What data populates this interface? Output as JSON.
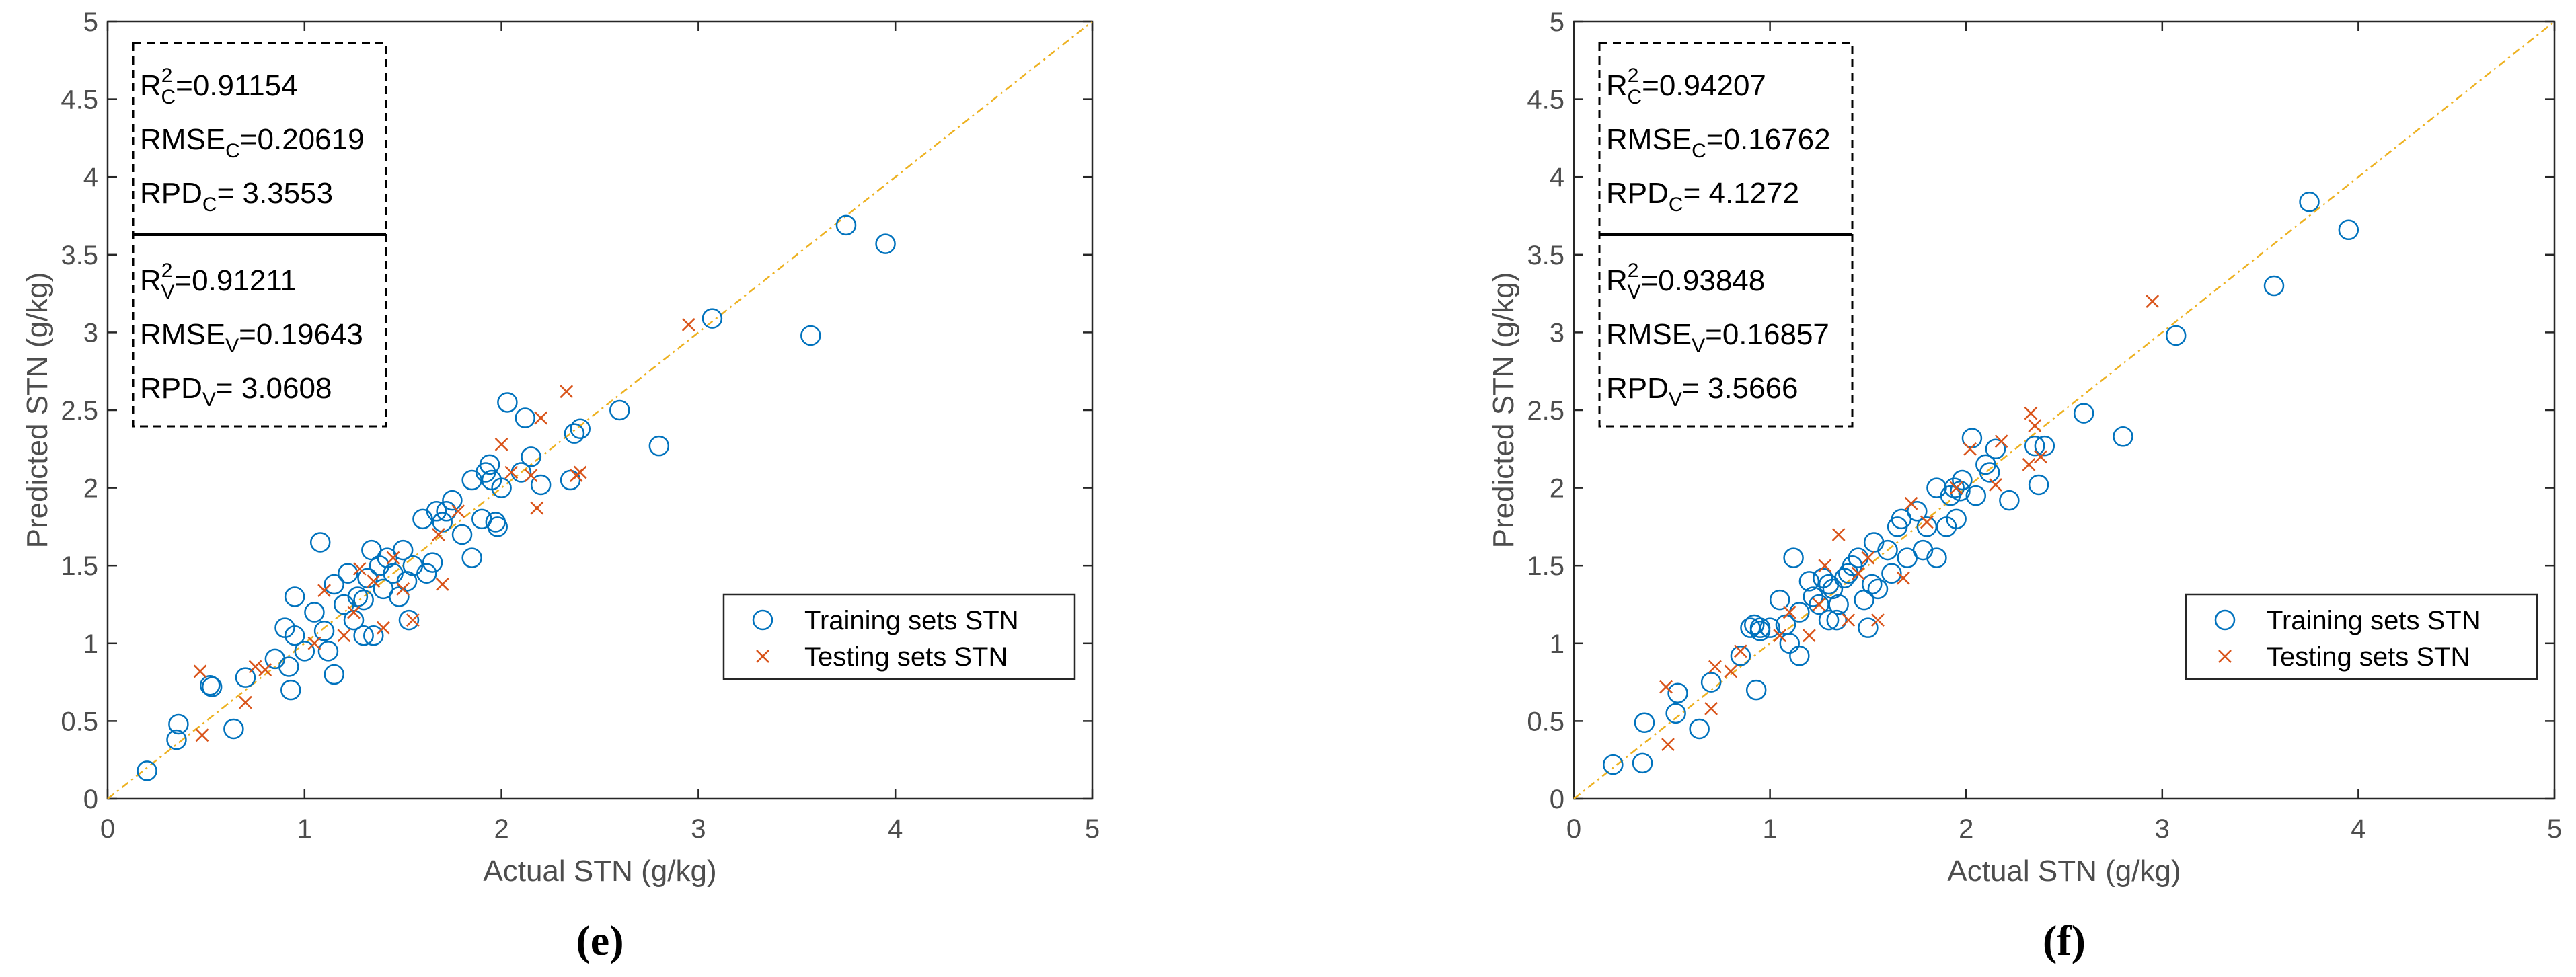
{
  "colors": {
    "train": "#0072BD",
    "test": "#D95319",
    "refline": "#EDB120",
    "axis": "#262626",
    "tick_text": "#4D4D4D",
    "stats_text": "#000000"
  },
  "chart_data": [
    {
      "type": "scatter",
      "panel_label": "(e)",
      "xlabel": "Actual STN (g/kg)",
      "ylabel": "Predicted STN (g/kg)",
      "xlim": [
        0,
        5
      ],
      "ylim": [
        0,
        5
      ],
      "xticks": [
        "0",
        "1",
        "2",
        "3",
        "4",
        "5"
      ],
      "yticks": [
        "0",
        "0.5",
        "1",
        "1.5",
        "2",
        "2.5",
        "3",
        "3.5",
        "4",
        "4.5",
        "5"
      ],
      "reference_line": "1:1",
      "legend": {
        "position": "lower-right",
        "entries": [
          "Training sets STN",
          "Testing sets STN"
        ]
      },
      "stats": {
        "calibration": [
          {
            "base": "R",
            "sup": "2",
            "sub": "C",
            "value": "=0.91154"
          },
          {
            "base": "RMSE",
            "sup": "",
            "sub": "C",
            "value": "=0.20619"
          },
          {
            "base": "RPD",
            "sup": "",
            "sub": "C",
            "value": "= 3.3553"
          }
        ],
        "validation": [
          {
            "base": "R",
            "sup": "2",
            "sub": "V",
            "value": "=0.91211"
          },
          {
            "base": "RMSE",
            "sup": "",
            "sub": "V",
            "value": "=0.19643"
          },
          {
            "base": "RPD",
            "sup": "",
            "sub": "V",
            "value": "= 3.0608"
          }
        ]
      },
      "series": [
        {
          "name": "Training sets STN",
          "marker": "circle",
          "points": [
            [
              0.2,
              0.18
            ],
            [
              0.35,
              0.38
            ],
            [
              0.36,
              0.48
            ],
            [
              0.52,
              0.73
            ],
            [
              0.53,
              0.72
            ],
            [
              0.64,
              0.45
            ],
            [
              0.7,
              0.78
            ],
            [
              0.85,
              0.9
            ],
            [
              0.9,
              1.1
            ],
            [
              0.92,
              0.85
            ],
            [
              0.93,
              0.7
            ],
            [
              0.95,
              1.3
            ],
            [
              0.95,
              1.05
            ],
            [
              1.0,
              0.95
            ],
            [
              1.05,
              1.2
            ],
            [
              1.08,
              1.65
            ],
            [
              1.1,
              1.08
            ],
            [
              1.12,
              0.95
            ],
            [
              1.15,
              0.8
            ],
            [
              1.15,
              1.38
            ],
            [
              1.2,
              1.25
            ],
            [
              1.22,
              1.45
            ],
            [
              1.25,
              1.15
            ],
            [
              1.27,
              1.3
            ],
            [
              1.3,
              1.28
            ],
            [
              1.32,
              1.42
            ],
            [
              1.3,
              1.05
            ],
            [
              1.34,
              1.6
            ],
            [
              1.35,
              1.05
            ],
            [
              1.38,
              1.5
            ],
            [
              1.4,
              1.35
            ],
            [
              1.42,
              1.55
            ],
            [
              1.45,
              1.45
            ],
            [
              1.48,
              1.3
            ],
            [
              1.5,
              1.6
            ],
            [
              1.52,
              1.4
            ],
            [
              1.53,
              1.15
            ],
            [
              1.55,
              1.5
            ],
            [
              1.6,
              1.8
            ],
            [
              1.62,
              1.45
            ],
            [
              1.65,
              1.52
            ],
            [
              1.67,
              1.85
            ],
            [
              1.7,
              1.78
            ],
            [
              1.72,
              1.85
            ],
            [
              1.75,
              1.92
            ],
            [
              1.8,
              1.7
            ],
            [
              1.85,
              2.05
            ],
            [
              1.85,
              1.55
            ],
            [
              1.9,
              1.8
            ],
            [
              1.92,
              2.1
            ],
            [
              1.94,
              2.15
            ],
            [
              1.95,
              2.05
            ],
            [
              1.97,
              1.78
            ],
            [
              1.98,
              1.75
            ],
            [
              2.0,
              2.0
            ],
            [
              2.03,
              2.55
            ],
            [
              2.1,
              2.1
            ],
            [
              2.12,
              2.45
            ],
            [
              2.15,
              2.2
            ],
            [
              2.2,
              2.02
            ],
            [
              2.35,
              2.05
            ],
            [
              2.37,
              2.35
            ],
            [
              2.4,
              2.38
            ],
            [
              2.6,
              2.5
            ],
            [
              2.8,
              2.27
            ],
            [
              3.07,
              3.09
            ],
            [
              3.57,
              2.98
            ],
            [
              3.75,
              3.69
            ],
            [
              3.95,
              3.57
            ]
          ]
        },
        {
          "name": "Testing sets STN",
          "marker": "x",
          "points": [
            [
              0.47,
              0.82
            ],
            [
              0.48,
              0.41
            ],
            [
              0.7,
              0.62
            ],
            [
              0.75,
              0.85
            ],
            [
              0.8,
              0.83
            ],
            [
              1.05,
              1.0
            ],
            [
              1.1,
              1.34
            ],
            [
              1.2,
              1.05
            ],
            [
              1.25,
              1.2
            ],
            [
              1.28,
              1.48
            ],
            [
              1.35,
              1.4
            ],
            [
              1.4,
              1.1
            ],
            [
              1.45,
              1.55
            ],
            [
              1.5,
              1.35
            ],
            [
              1.55,
              1.15
            ],
            [
              1.68,
              1.7
            ],
            [
              1.7,
              1.38
            ],
            [
              1.78,
              1.85
            ],
            [
              2.0,
              2.28
            ],
            [
              2.05,
              2.1
            ],
            [
              2.15,
              2.08
            ],
            [
              2.18,
              1.87
            ],
            [
              2.2,
              2.45
            ],
            [
              2.33,
              2.62
            ],
            [
              2.38,
              2.08
            ],
            [
              2.4,
              2.1
            ],
            [
              2.95,
              3.05
            ]
          ]
        }
      ]
    },
    {
      "type": "scatter",
      "panel_label": "(f)",
      "xlabel": "Actual STN (g/kg)",
      "ylabel": "Predicted STN (g/kg)",
      "xlim": [
        0,
        5
      ],
      "ylim": [
        0,
        5
      ],
      "xticks": [
        "0",
        "1",
        "2",
        "3",
        "4",
        "5"
      ],
      "yticks": [
        "0",
        "0.5",
        "1",
        "1.5",
        "2",
        "2.5",
        "3",
        "3.5",
        "4",
        "4.5",
        "5"
      ],
      "reference_line": "1:1",
      "legend": {
        "position": "lower-right",
        "entries": [
          "Training sets STN",
          "Testing sets STN"
        ]
      },
      "stats": {
        "calibration": [
          {
            "base": "R",
            "sup": "2",
            "sub": "C",
            "value": "=0.94207"
          },
          {
            "base": "RMSE",
            "sup": "",
            "sub": "C",
            "value": "=0.16762"
          },
          {
            "base": "RPD",
            "sup": "",
            "sub": "C",
            "value": "= 4.1272"
          }
        ],
        "validation": [
          {
            "base": "R",
            "sup": "2",
            "sub": "V",
            "value": "=0.93848"
          },
          {
            "base": "RMSE",
            "sup": "",
            "sub": "V",
            "value": "=0.16857"
          },
          {
            "base": "RPD",
            "sup": "",
            "sub": "V",
            "value": "= 3.5666"
          }
        ]
      },
      "series": [
        {
          "name": "Training sets STN",
          "marker": "circle",
          "points": [
            [
              0.2,
              0.22
            ],
            [
              0.35,
              0.23
            ],
            [
              0.36,
              0.49
            ],
            [
              0.52,
              0.55
            ],
            [
              0.53,
              0.68
            ],
            [
              0.64,
              0.45
            ],
            [
              0.7,
              0.75
            ],
            [
              0.85,
              0.92
            ],
            [
              0.9,
              1.1
            ],
            [
              0.92,
              1.12
            ],
            [
              0.93,
              0.7
            ],
            [
              0.95,
              1.08
            ],
            [
              0.95,
              1.1
            ],
            [
              1.0,
              1.1
            ],
            [
              1.05,
              1.28
            ],
            [
              1.08,
              1.12
            ],
            [
              1.1,
              1.0
            ],
            [
              1.12,
              1.55
            ],
            [
              1.15,
              0.92
            ],
            [
              1.15,
              1.2
            ],
            [
              1.2,
              1.4
            ],
            [
              1.22,
              1.3
            ],
            [
              1.25,
              1.25
            ],
            [
              1.27,
              1.42
            ],
            [
              1.3,
              1.15
            ],
            [
              1.32,
              1.35
            ],
            [
              1.3,
              1.38
            ],
            [
              1.34,
              1.15
            ],
            [
              1.35,
              1.25
            ],
            [
              1.38,
              1.42
            ],
            [
              1.4,
              1.45
            ],
            [
              1.42,
              1.5
            ],
            [
              1.45,
              1.55
            ],
            [
              1.48,
              1.28
            ],
            [
              1.5,
              1.1
            ],
            [
              1.52,
              1.38
            ],
            [
              1.53,
              1.65
            ],
            [
              1.55,
              1.35
            ],
            [
              1.6,
              1.6
            ],
            [
              1.62,
              1.45
            ],
            [
              1.65,
              1.75
            ],
            [
              1.67,
              1.8
            ],
            [
              1.7,
              1.55
            ],
            [
              1.75,
              1.85
            ],
            [
              1.78,
              1.6
            ],
            [
              1.8,
              1.75
            ],
            [
              1.85,
              1.55
            ],
            [
              1.85,
              2.0
            ],
            [
              1.9,
              1.75
            ],
            [
              1.92,
              1.95
            ],
            [
              1.94,
              2.0
            ],
            [
              1.95,
              1.8
            ],
            [
              1.97,
              1.98
            ],
            [
              1.98,
              2.05
            ],
            [
              2.03,
              2.32
            ],
            [
              2.05,
              1.95
            ],
            [
              2.1,
              2.15
            ],
            [
              2.12,
              2.1
            ],
            [
              2.15,
              2.25
            ],
            [
              2.22,
              1.92
            ],
            [
              2.35,
              2.27
            ],
            [
              2.37,
              2.02
            ],
            [
              2.4,
              2.27
            ],
            [
              2.6,
              2.48
            ],
            [
              2.8,
              2.33
            ],
            [
              3.07,
              2.98
            ],
            [
              3.57,
              3.3
            ],
            [
              3.75,
              3.84
            ],
            [
              3.95,
              3.66
            ]
          ]
        },
        {
          "name": "Testing sets STN",
          "marker": "x",
          "points": [
            [
              0.47,
              0.72
            ],
            [
              0.48,
              0.35
            ],
            [
              0.7,
              0.58
            ],
            [
              0.72,
              0.85
            ],
            [
              0.8,
              0.82
            ],
            [
              0.85,
              0.95
            ],
            [
              1.05,
              1.05
            ],
            [
              1.1,
              1.2
            ],
            [
              1.2,
              1.05
            ],
            [
              1.25,
              1.25
            ],
            [
              1.28,
              1.5
            ],
            [
              1.35,
              1.7
            ],
            [
              1.4,
              1.15
            ],
            [
              1.45,
              1.45
            ],
            [
              1.5,
              1.55
            ],
            [
              1.55,
              1.15
            ],
            [
              1.68,
              1.42
            ],
            [
              1.72,
              1.9
            ],
            [
              1.8,
              1.78
            ],
            [
              1.95,
              2.0
            ],
            [
              2.02,
              2.25
            ],
            [
              2.15,
              2.02
            ],
            [
              2.18,
              2.3
            ],
            [
              2.32,
              2.15
            ],
            [
              2.33,
              2.48
            ],
            [
              2.35,
              2.4
            ],
            [
              2.38,
              2.2
            ],
            [
              2.95,
              3.2
            ]
          ]
        }
      ]
    }
  ]
}
